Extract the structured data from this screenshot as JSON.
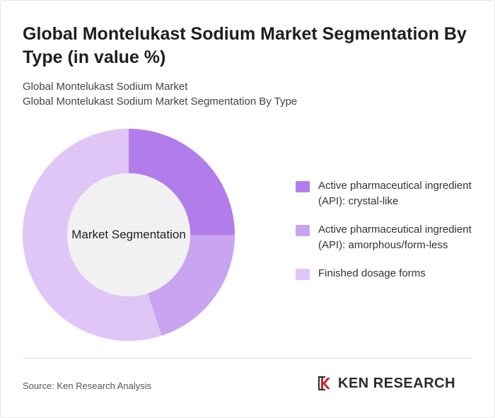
{
  "header": {
    "title": "Global Montelukast Sodium Market Segmentation By Type (in value %)",
    "subtitle_1": "Global Montelukast Sodium Market",
    "subtitle_2": "Global Montelukast Sodium Market Segmentation By Type"
  },
  "chart_data": {
    "type": "pie",
    "variant": "donut",
    "center_label": "Market Segmentation",
    "categories": [
      "Active pharmaceutical ingredient (API): crystal-like",
      "Active pharmaceutical ingredient (API): amorphous/form-less",
      "Finished dosage forms"
    ],
    "values": [
      25,
      20,
      55
    ],
    "colors": [
      "#b27deb",
      "#c9a4f0",
      "#dfc6f7"
    ],
    "legend_position": "right"
  },
  "footer": {
    "source": "Source: Ken Research Analysis",
    "logo_text": "KEN RESEARCH"
  }
}
